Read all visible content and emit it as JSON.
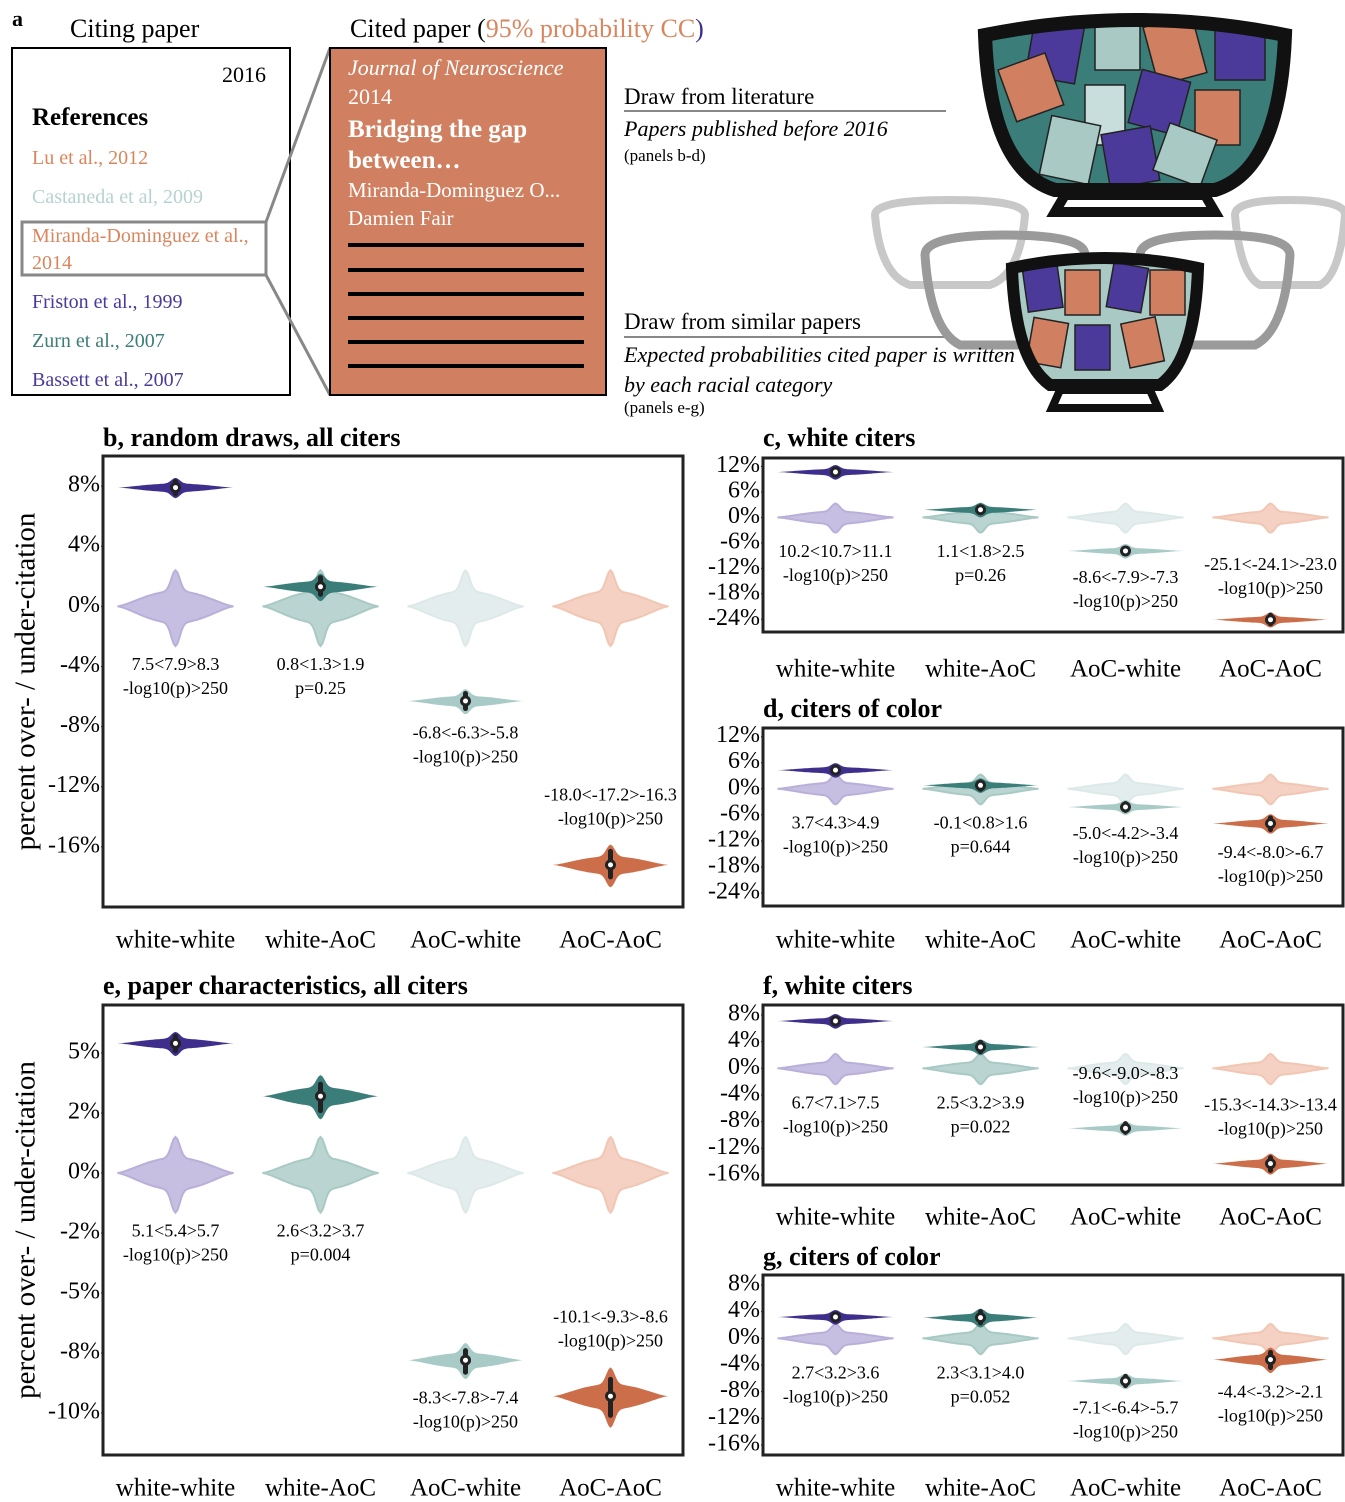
{
  "panel_a": {
    "label": "a",
    "citing": {
      "title": "Citing paper",
      "year": "2016",
      "references_heading": "References",
      "references": [
        {
          "text": "Lu et al., 2012",
          "color": "#d9865e"
        },
        {
          "text": "Castaneda et al, 2009",
          "color": "#b5d3d0"
        },
        {
          "text": "Miranda-Dominguez et al., 2014",
          "color": "#d9865e"
        },
        {
          "text": "Friston et al., 1999",
          "color": "#4b3a9a"
        },
        {
          "text": "Zurn et al., 2007",
          "color": "#3b7d79"
        },
        {
          "text": "Bassett et al., 2007",
          "color": "#4b3a9a"
        }
      ]
    },
    "cited": {
      "title_parts": [
        {
          "text": "Cited paper (",
          "color": "#000000"
        },
        {
          "text": "95% probability CC",
          "color": "#d9865e"
        },
        {
          "text": ")",
          "color": "#3f2e8c"
        }
      ],
      "journal": "Journal of Neuroscience",
      "year": "2014",
      "paper_title": "Bridging the gap between…",
      "authors": [
        "Miranda-Dominguez O...",
        "Damien Fair"
      ]
    },
    "draw_literature": {
      "heading": "Draw from literature",
      "description": "Papers published before 2016",
      "note": "(panels b-d)"
    },
    "draw_similar": {
      "heading": "Draw from similar papers",
      "description": "Expected probabilities cited paper is written by each racial category",
      "note": "(panels e-g)"
    }
  },
  "chart_data": [
    {
      "type": "violin",
      "title": "b, random draws, all citers",
      "ylabel": "percent over- / under-citation",
      "categories": [
        "white-white",
        "white-AoC",
        "AoC-white",
        "AoC-AoC"
      ],
      "ylim": [
        -20,
        10
      ],
      "yticks": [
        {
          "value": 8,
          "label": "8%"
        },
        {
          "value": 4,
          "label": "4%"
        },
        {
          "value": 0,
          "label": "0%"
        },
        {
          "value": -4,
          "label": "-4%"
        },
        {
          "value": -8,
          "label": "-8%"
        },
        {
          "value": -12,
          "label": "-12%"
        },
        {
          "value": -16,
          "label": "-16%"
        }
      ],
      "values": [
        7.9,
        1.3,
        -6.3,
        -17.2
      ],
      "lower": [
        7.5,
        0.8,
        -6.8,
        -18.0
      ],
      "upper": [
        8.3,
        1.9,
        -5.8,
        -16.3
      ],
      "value_labels": [
        "7.5<7.9>8.3",
        "0.8<1.3>1.9",
        "-6.8<-6.3>-5.8",
        "-18.0<-17.2>-16.3"
      ],
      "p_labels": [
        "-log10(p)>250",
        "p=0.25",
        "-log10(p)>250",
        "-log10(p)>250"
      ],
      "null_values": [
        0,
        0,
        0,
        0
      ],
      "colors": [
        "#3f2e8c",
        "#3b7d79",
        "#a9cbc8",
        "#cd6e4a"
      ],
      "null_colors": [
        "#b9afd9",
        "#a9c9c5",
        "#dde9e8",
        "#f1c6b3"
      ]
    },
    {
      "type": "violin",
      "title": "c, white citers",
      "categories": [
        "white-white",
        "white-AoC",
        "AoC-white",
        "AoC-AoC"
      ],
      "ylim": [
        -27,
        14
      ],
      "yticks": [
        {
          "value": 12,
          "label": "12%"
        },
        {
          "value": 6,
          "label": "6%"
        },
        {
          "value": 0,
          "label": "0%"
        },
        {
          "value": -6,
          "label": "-6%"
        },
        {
          "value": -12,
          "label": "-12%"
        },
        {
          "value": -18,
          "label": "-18%"
        },
        {
          "value": -24,
          "label": "-24%"
        }
      ],
      "values": [
        10.7,
        1.8,
        -7.9,
        -24.1
      ],
      "lower": [
        10.2,
        1.1,
        -8.6,
        -25.1
      ],
      "upper": [
        11.1,
        2.5,
        -7.3,
        -23.0
      ],
      "value_labels": [
        "10.2<10.7>11.1",
        "1.1<1.8>2.5",
        "-8.6<-7.9>-7.3",
        "-25.1<-24.1>-23.0"
      ],
      "p_labels": [
        "-log10(p)>250",
        "p=0.26",
        "-log10(p)>250",
        "-log10(p)>250"
      ],
      "null_values": [
        0,
        0,
        0,
        0
      ],
      "colors": [
        "#3f2e8c",
        "#3b7d79",
        "#a9cbc8",
        "#cd6e4a"
      ],
      "null_colors": [
        "#b9afd9",
        "#a9c9c5",
        "#dde9e8",
        "#f1c6b3"
      ]
    },
    {
      "type": "violin",
      "title": "d, citers of color",
      "categories": [
        "white-white",
        "white-AoC",
        "AoC-white",
        "AoC-AoC"
      ],
      "ylim": [
        -27,
        14
      ],
      "yticks": [
        {
          "value": 12,
          "label": "12%"
        },
        {
          "value": 6,
          "label": "6%"
        },
        {
          "value": 0,
          "label": "0%"
        },
        {
          "value": -6,
          "label": "-6%"
        },
        {
          "value": -12,
          "label": "-12%"
        },
        {
          "value": -18,
          "label": "-18%"
        },
        {
          "value": -24,
          "label": "-24%"
        }
      ],
      "values": [
        4.3,
        0.8,
        -4.2,
        -8.0
      ],
      "lower": [
        3.7,
        -0.1,
        -5.0,
        -9.4
      ],
      "upper": [
        4.9,
        1.6,
        -3.4,
        -6.7
      ],
      "value_labels": [
        "3.7<4.3>4.9",
        "-0.1<0.8>1.6",
        "-5.0<-4.2>-3.4",
        "-9.4<-8.0>-6.7"
      ],
      "p_labels": [
        "-log10(p)>250",
        "p=0.644",
        "-log10(p)>250",
        "-log10(p)>250"
      ],
      "null_values": [
        0,
        0,
        0,
        0
      ],
      "colors": [
        "#3f2e8c",
        "#3b7d79",
        "#a9cbc8",
        "#cd6e4a"
      ],
      "null_colors": [
        "#b9afd9",
        "#a9c9c5",
        "#dde9e8",
        "#f1c6b3"
      ]
    },
    {
      "type": "violin",
      "title": "e, paper characteristics, all citers",
      "ylabel": "percent over- / under-citation",
      "categories": [
        "white-white",
        "white-AoC",
        "AoC-white",
        "AoC-AoC"
      ],
      "ylim": [
        -11.75,
        7
      ],
      "yticks": [
        {
          "value": 5,
          "label": "5%"
        },
        {
          "value": 2.5,
          "label": "2%"
        },
        {
          "value": 0,
          "label": "0%"
        },
        {
          "value": -2.5,
          "label": "-2%"
        },
        {
          "value": -5,
          "label": "-5%"
        },
        {
          "value": -7.5,
          "label": "-8%"
        },
        {
          "value": -10,
          "label": "-10%"
        }
      ],
      "values": [
        5.4,
        3.2,
        -7.8,
        -9.3
      ],
      "lower": [
        5.1,
        2.6,
        -8.3,
        -10.1
      ],
      "upper": [
        5.7,
        3.7,
        -7.4,
        -8.6
      ],
      "value_labels": [
        "5.1<5.4>5.7",
        "2.6<3.2>3.7",
        "-8.3<-7.8>-7.4",
        "-10.1<-9.3>-8.6"
      ],
      "p_labels": [
        "-log10(p)>250",
        "p=0.004",
        "-log10(p)>250",
        "-log10(p)>250"
      ],
      "null_values": [
        0,
        0,
        0,
        0
      ],
      "colors": [
        "#3f2e8c",
        "#3b7d79",
        "#a9cbc8",
        "#cd6e4a"
      ],
      "null_colors": [
        "#b9afd9",
        "#a9c9c5",
        "#dde9e8",
        "#f1c6b3"
      ]
    },
    {
      "type": "violin",
      "title": "f, white citers",
      "categories": [
        "white-white",
        "white-AoC",
        "AoC-white",
        "AoC-AoC"
      ],
      "ylim": [
        -17.5,
        9.5
      ],
      "yticks": [
        {
          "value": 8,
          "label": "8%"
        },
        {
          "value": 4,
          "label": "4%"
        },
        {
          "value": 0,
          "label": "0%"
        },
        {
          "value": -4,
          "label": "-4%"
        },
        {
          "value": -8,
          "label": "-8%"
        },
        {
          "value": -12,
          "label": "-12%"
        },
        {
          "value": -16,
          "label": "-16%"
        }
      ],
      "values": [
        7.1,
        3.2,
        -9.0,
        -14.3
      ],
      "lower": [
        6.7,
        2.5,
        -9.6,
        -15.3
      ],
      "upper": [
        7.5,
        3.9,
        -8.3,
        -13.4
      ],
      "value_labels": [
        "6.7<7.1>7.5",
        "2.5<3.2>3.9",
        "-9.6<-9.0>-8.3",
        "-15.3<-14.3>-13.4"
      ],
      "p_labels": [
        "-log10(p)>250",
        "p=0.022",
        "-log10(p)>250",
        "-log10(p)>250"
      ],
      "null_values": [
        0,
        0,
        0,
        0
      ],
      "colors": [
        "#3f2e8c",
        "#3b7d79",
        "#a9cbc8",
        "#cd6e4a"
      ],
      "null_colors": [
        "#b9afd9",
        "#a9c9c5",
        "#dde9e8",
        "#f1c6b3"
      ]
    },
    {
      "type": "violin",
      "title": "g, citers of color",
      "categories": [
        "white-white",
        "white-AoC",
        "AoC-white",
        "AoC-AoC"
      ],
      "ylim": [
        -17.5,
        9.5
      ],
      "yticks": [
        {
          "value": 8,
          "label": "8%"
        },
        {
          "value": 4,
          "label": "4%"
        },
        {
          "value": 0,
          "label": "0%"
        },
        {
          "value": -4,
          "label": "-4%"
        },
        {
          "value": -8,
          "label": "-8%"
        },
        {
          "value": -12,
          "label": "-12%"
        },
        {
          "value": -16,
          "label": "-16%"
        }
      ],
      "values": [
        3.2,
        3.1,
        -6.4,
        -3.2
      ],
      "lower": [
        2.7,
        2.3,
        -7.1,
        -4.4
      ],
      "upper": [
        3.6,
        4.0,
        -5.7,
        -2.1
      ],
      "value_labels": [
        "2.7<3.2>3.6",
        "2.3<3.1>4.0",
        "-7.1<-6.4>-5.7",
        "-4.4<-3.2>-2.1"
      ],
      "p_labels": [
        "-log10(p)>250",
        "p=0.052",
        "-log10(p)>250",
        "-log10(p)>250"
      ],
      "null_values": [
        0,
        0,
        0,
        0
      ],
      "colors": [
        "#3f2e8c",
        "#3b7d79",
        "#a9cbc8",
        "#cd6e4a"
      ],
      "null_colors": [
        "#b9afd9",
        "#a9c9c5",
        "#dde9e8",
        "#f1c6b3"
      ]
    }
  ]
}
